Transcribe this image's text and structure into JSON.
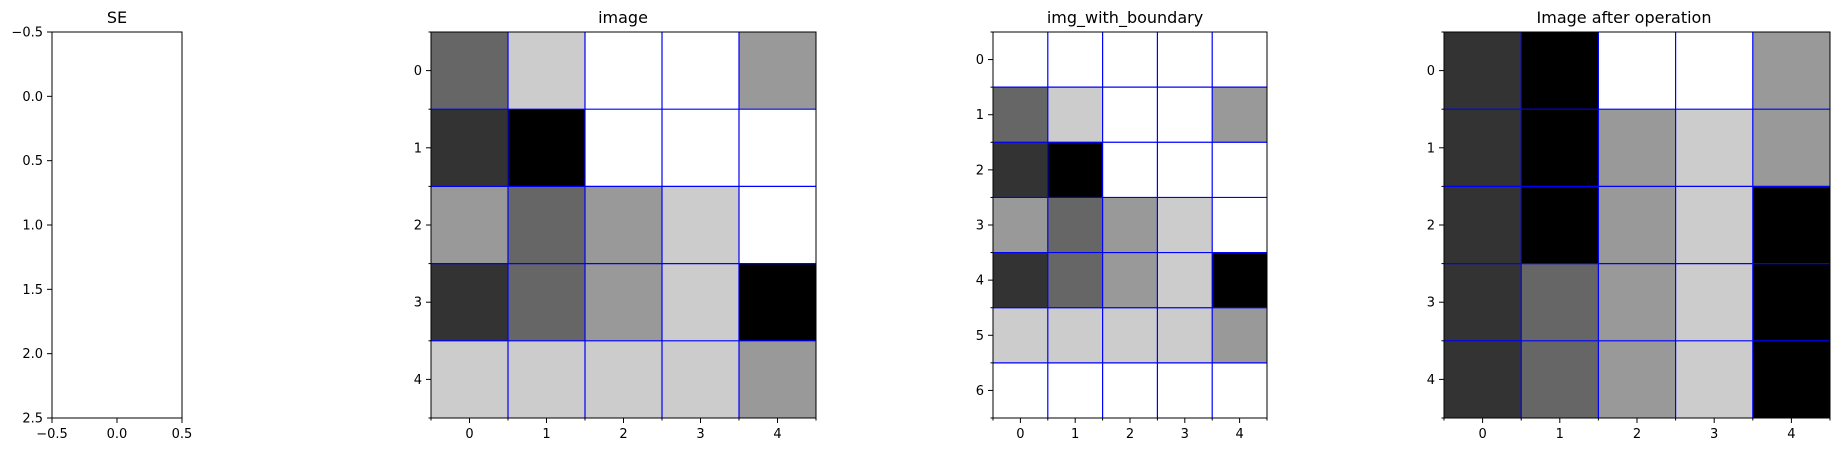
{
  "chart_data": [
    {
      "type": "heatmap",
      "title": "SE",
      "rows": 3,
      "cols": 1,
      "values": [
        [
          1
        ],
        [
          1
        ],
        [
          1
        ]
      ],
      "xlim": [
        -0.5,
        0.5
      ],
      "ylim": [
        2.5,
        -0.5
      ],
      "x_ticks": [
        -0.5,
        0.0,
        0.5
      ],
      "x_tick_labels": [
        "−0.5",
        "0.0",
        "0.5"
      ],
      "y_ticks": [
        -0.5,
        0.0,
        0.5,
        1.0,
        1.5,
        2.0,
        2.5
      ],
      "y_tick_labels": [
        "−0.5",
        "0.0",
        "0.5",
        "1.0",
        "1.5",
        "2.0",
        "2.5"
      ],
      "grid": false,
      "colormap": "gray"
    },
    {
      "type": "heatmap",
      "title": "image",
      "rows": 5,
      "cols": 5,
      "values": [
        [
          0.4,
          0.8,
          1.0,
          1.0,
          0.6
        ],
        [
          0.2,
          0.0,
          1.0,
          1.0,
          1.0
        ],
        [
          0.6,
          0.4,
          0.6,
          0.8,
          1.0
        ],
        [
          0.2,
          0.4,
          0.6,
          0.8,
          0.0
        ],
        [
          0.8,
          0.8,
          0.8,
          0.8,
          0.6
        ]
      ],
      "x_ticks": [
        0,
        1,
        2,
        3,
        4
      ],
      "x_tick_labels": [
        "0",
        "1",
        "2",
        "3",
        "4"
      ],
      "y_ticks": [
        0,
        1,
        2,
        3,
        4
      ],
      "y_tick_labels": [
        "0",
        "1",
        "2",
        "3",
        "4"
      ],
      "grid": true,
      "grid_color": "#0000ff",
      "colormap": "gray"
    },
    {
      "type": "heatmap",
      "title": "img_with_boundary",
      "rows": 7,
      "cols": 5,
      "values": [
        [
          1.0,
          1.0,
          1.0,
          1.0,
          1.0
        ],
        [
          0.4,
          0.8,
          1.0,
          1.0,
          0.6
        ],
        [
          0.2,
          0.0,
          1.0,
          1.0,
          1.0
        ],
        [
          0.6,
          0.4,
          0.6,
          0.8,
          1.0
        ],
        [
          0.2,
          0.4,
          0.6,
          0.8,
          0.0
        ],
        [
          0.8,
          0.8,
          0.8,
          0.8,
          0.6
        ],
        [
          1.0,
          1.0,
          1.0,
          1.0,
          1.0
        ]
      ],
      "x_ticks": [
        0,
        1,
        2,
        3,
        4
      ],
      "x_tick_labels": [
        "0",
        "1",
        "2",
        "3",
        "4"
      ],
      "y_ticks": [
        0,
        1,
        2,
        3,
        4,
        5,
        6
      ],
      "y_tick_labels": [
        "0",
        "1",
        "2",
        "3",
        "4",
        "5",
        "6"
      ],
      "grid": true,
      "grid_color": "#0000ff",
      "colormap": "gray"
    },
    {
      "type": "heatmap",
      "title": "Image after operation",
      "rows": 5,
      "cols": 5,
      "values": [
        [
          0.2,
          0.0,
          1.0,
          1.0,
          0.6
        ],
        [
          0.2,
          0.0,
          0.6,
          0.8,
          0.6
        ],
        [
          0.2,
          0.0,
          0.6,
          0.8,
          0.0
        ],
        [
          0.2,
          0.4,
          0.6,
          0.8,
          0.0
        ],
        [
          0.2,
          0.4,
          0.6,
          0.8,
          0.0
        ]
      ],
      "x_ticks": [
        0,
        1,
        2,
        3,
        4
      ],
      "x_tick_labels": [
        "0",
        "1",
        "2",
        "3",
        "4"
      ],
      "y_ticks": [
        0,
        1,
        2,
        3,
        4
      ],
      "y_tick_labels": [
        "0",
        "1",
        "2",
        "3",
        "4"
      ],
      "grid": true,
      "grid_color": "#0000ff",
      "colormap": "gray"
    }
  ]
}
